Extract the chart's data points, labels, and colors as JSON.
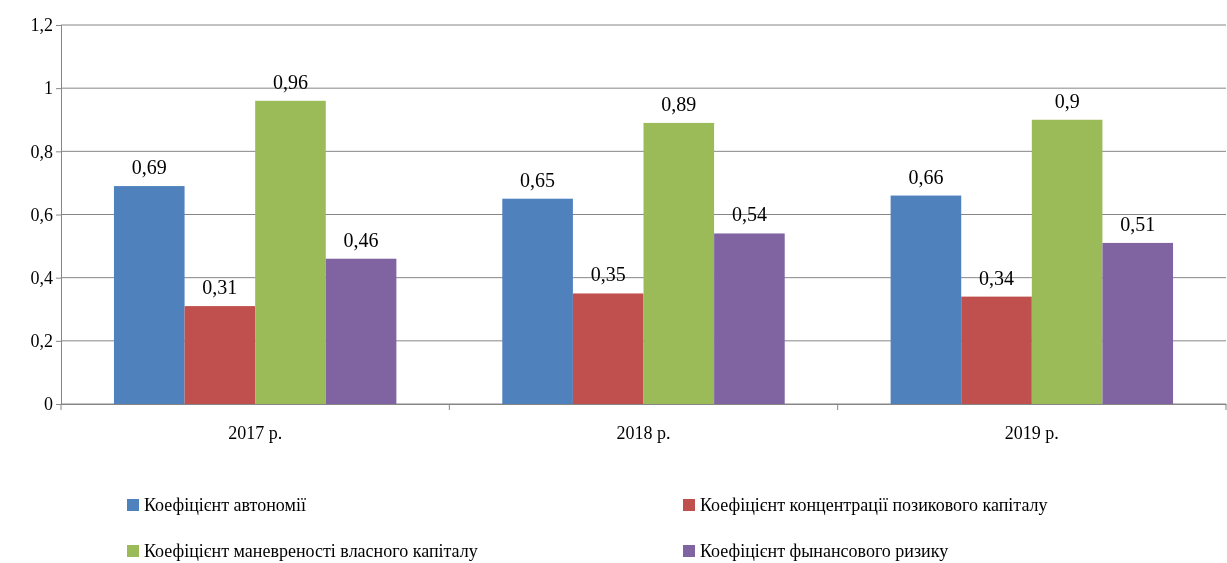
{
  "chart_data": {
    "type": "bar",
    "categories": [
      "2017 р.",
      "2018 р.",
      "2019 р."
    ],
    "series": [
      {
        "name": "Коефіцієнт автономії",
        "color": "#4f81bd",
        "values": [
          0.69,
          0.65,
          0.66
        ]
      },
      {
        "name": "Коефіцієнт концентрації позикового капіталу",
        "color": "#c0504d",
        "values": [
          0.31,
          0.35,
          0.34
        ]
      },
      {
        "name": "Коефіцієнт маневреності власного капіталу",
        "color": "#9bbb59",
        "values": [
          0.96,
          0.89,
          0.9
        ]
      },
      {
        "name": "Коефіцієнт фынансового ризику",
        "color": "#8064a2",
        "values": [
          0.46,
          0.54,
          0.51
        ]
      }
    ],
    "ylim": [
      0,
      1.2
    ],
    "yticks": [
      {
        "value": 0,
        "label": "0"
      },
      {
        "value": 0.2,
        "label": "0,2"
      },
      {
        "value": 0.4,
        "label": "0,4"
      },
      {
        "value": 0.6,
        "label": "0,6"
      },
      {
        "value": 0.8,
        "label": "0,8"
      },
      {
        "value": 1,
        "label": "1"
      },
      {
        "value": 1.2,
        "label": "1,2"
      }
    ],
    "grid": "y",
    "legend": "bottom",
    "value_labels": [
      [
        "0,69",
        "0,65",
        "0,66"
      ],
      [
        "0,31",
        "0,35",
        "0,34"
      ],
      [
        "0,96",
        "0,89",
        "0,9"
      ],
      [
        "0,46",
        "0,54",
        "0,51"
      ]
    ]
  }
}
